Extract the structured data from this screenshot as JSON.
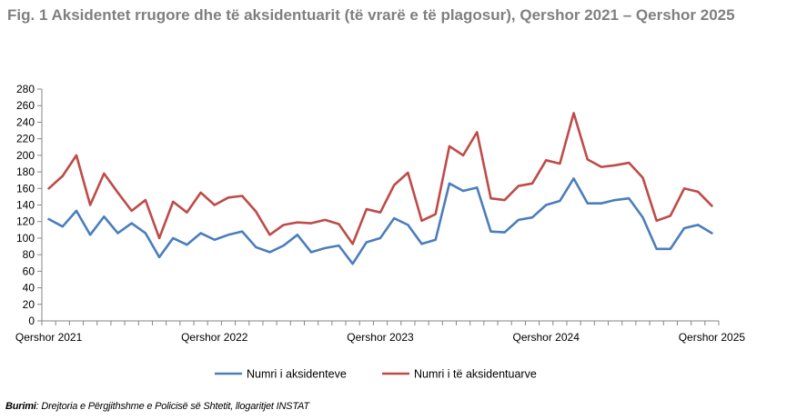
{
  "title": "Fig. 1 Aksidentet rrugore dhe të aksidentuarit (të vrarë e të plagosur), Qershor 2021 – Qershor 2025",
  "source": {
    "label": "Burimi",
    "text": ": Drejtoria e Përgjithshme e Policisë së Shtetit, llogaritjet INSTAT"
  },
  "chart_data": {
    "type": "line",
    "x_tick_labels": [
      "Qershor 2021",
      "Qershor 2022",
      "Qershor 2023",
      "Qershor 2024",
      "Qershor 2025"
    ],
    "y_ticks": [
      0,
      20,
      40,
      60,
      80,
      100,
      120,
      140,
      160,
      180,
      200,
      220,
      240,
      260,
      280
    ],
    "ylim": [
      0,
      280
    ],
    "grid": false,
    "legend_position": "bottom",
    "series": [
      {
        "name": "Numri i aksidenteve",
        "color": "#4a7ebb",
        "values": [
          123,
          114,
          133,
          104,
          126,
          106,
          118,
          106,
          77,
          100,
          92,
          106,
          98,
          104,
          108,
          89,
          83,
          91,
          104,
          83,
          88,
          91,
          69,
          95,
          100,
          124,
          116,
          93,
          98,
          166,
          157,
          161,
          108,
          107,
          122,
          125,
          140,
          145,
          172,
          142,
          142,
          146,
          148,
          125,
          87,
          87,
          112,
          116,
          106
        ]
      },
      {
        "name": "Numri i të aksidentuarve",
        "color": "#be4b48",
        "values": [
          160,
          175,
          200,
          140,
          178,
          155,
          133,
          146,
          100,
          144,
          131,
          155,
          140,
          149,
          151,
          132,
          104,
          116,
          119,
          118,
          122,
          117,
          93,
          135,
          131,
          164,
          179,
          121,
          129,
          211,
          200,
          228,
          148,
          146,
          163,
          166,
          194,
          190,
          251,
          195,
          186,
          188,
          191,
          173,
          121,
          127,
          160,
          156,
          139
        ]
      }
    ]
  }
}
